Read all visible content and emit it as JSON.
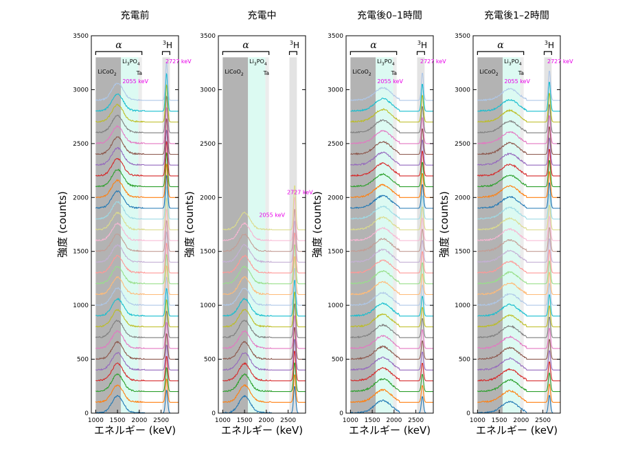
{
  "figure": {
    "ylabel": "強度 (counts)",
    "xlabel": "エネルギー (keV)",
    "region_labels": {
      "licoo2": "LiCoO",
      "licoo2_sub": "2",
      "li3po4_a": "Li",
      "li3po4_b": "3",
      "li3po4_c": "PO",
      "li3po4_d": "4",
      "ta": "Ta"
    },
    "alpha_label": "α",
    "h3_sup": "3",
    "h3_main": "H",
    "peak_labels": {
      "e1": "2055 keV",
      "e2": "2727 keV"
    }
  },
  "colors": {
    "licoo2_region": "#b3b3b3",
    "li3po4_region": "#dcfaf2",
    "ta_region": "#ececec",
    "h3_region": "#e3e3e3",
    "annotation": "#e800e8",
    "series_palette": [
      "#1f77b4",
      "#ff7f0e",
      "#2ca02c",
      "#d62728",
      "#9467bd",
      "#8c564b",
      "#e377c2",
      "#7f7f7f",
      "#bcbd22",
      "#17becf",
      "#aec7e8",
      "#ffbb78",
      "#98df8a",
      "#ff9896",
      "#c5b0d5",
      "#c49c94",
      "#f7b6d2",
      "#dbdb8d",
      "#9edae5"
    ]
  },
  "chart_data": [
    {
      "type": "line",
      "title": "充電前",
      "xlim": [
        900,
        2900
      ],
      "ylim": [
        0,
        3500
      ],
      "xticks": [
        1000,
        1500,
        2000,
        2500
      ],
      "yticks": [
        0,
        500,
        1000,
        1500,
        2000,
        2500,
        3000,
        3500
      ],
      "series_count": 30,
      "offset_step_counts": 100,
      "alpha_peak_keV": 1500,
      "alpha_peak_height_counts": 150,
      "h3_peak_keV": 2625,
      "h3_peak_height_counts": 360,
      "regions_keV": {
        "licoo2": [
          1000,
          1580
        ],
        "li3po4": [
          1580,
          1980
        ],
        "ta": [
          1980,
          2060
        ],
        "h3": [
          2530,
          2700
        ]
      },
      "annotations": [
        "2055 keV",
        "2727 keV"
      ]
    },
    {
      "type": "line",
      "title": "充電中",
      "xlim": [
        900,
        2900
      ],
      "ylim": [
        0,
        3500
      ],
      "xticks": [
        1000,
        1500,
        2000,
        2500
      ],
      "yticks": [
        0,
        500,
        1000,
        1500,
        2000,
        2500,
        3000,
        3500
      ],
      "series_count": 18,
      "offset_step_counts": 100,
      "alpha_peak_keV": 1500,
      "alpha_peak_height_counts": 150,
      "h3_peak_keV": 2650,
      "h3_peak_height_counts": 420,
      "regions_keV": {
        "licoo2": [
          1000,
          1580
        ],
        "li3po4": [
          1580,
          1980
        ],
        "ta": [
          1980,
          2060
        ],
        "h3": [
          2530,
          2700
        ]
      },
      "annotations": [
        "2055 keV",
        "2727 keV"
      ]
    },
    {
      "type": "line",
      "title": "充電後0–1時間",
      "xlim": [
        900,
        2900
      ],
      "ylim": [
        0,
        3500
      ],
      "xticks": [
        1000,
        1500,
        2000,
        2500
      ],
      "yticks": [
        0,
        500,
        1000,
        1500,
        2000,
        2500,
        3000,
        3500
      ],
      "series_count": 30,
      "offset_step_counts": 100,
      "alpha_peak_keV": 1750,
      "alpha_peak_height_counts": 110,
      "h3_peak_keV": 2650,
      "h3_peak_height_counts": 260,
      "regions_keV": {
        "licoo2": [
          1000,
          1580
        ],
        "li3po4": [
          1580,
          1980
        ],
        "ta": [
          1980,
          2060
        ],
        "h3": [
          2530,
          2700
        ]
      },
      "annotations": [
        "2055 keV",
        "2727 keV"
      ]
    },
    {
      "type": "line",
      "title": "充電後1–2時間",
      "xlim": [
        900,
        2900
      ],
      "ylim": [
        0,
        3500
      ],
      "xticks": [
        1000,
        1500,
        2000,
        2500
      ],
      "yticks": [
        0,
        500,
        1000,
        1500,
        2000,
        2500,
        3000,
        3500
      ],
      "series_count": 30,
      "offset_step_counts": 100,
      "alpha_peak_keV": 1750,
      "alpha_peak_height_counts": 100,
      "h3_peak_keV": 2650,
      "h3_peak_height_counts": 280,
      "regions_keV": {
        "licoo2": [
          1000,
          1580
        ],
        "li3po4": [
          1580,
          1980
        ],
        "ta": [
          1980,
          2060
        ],
        "h3": [
          2530,
          2700
        ]
      },
      "annotations": [
        "2055 keV",
        "2727 keV"
      ]
    }
  ]
}
